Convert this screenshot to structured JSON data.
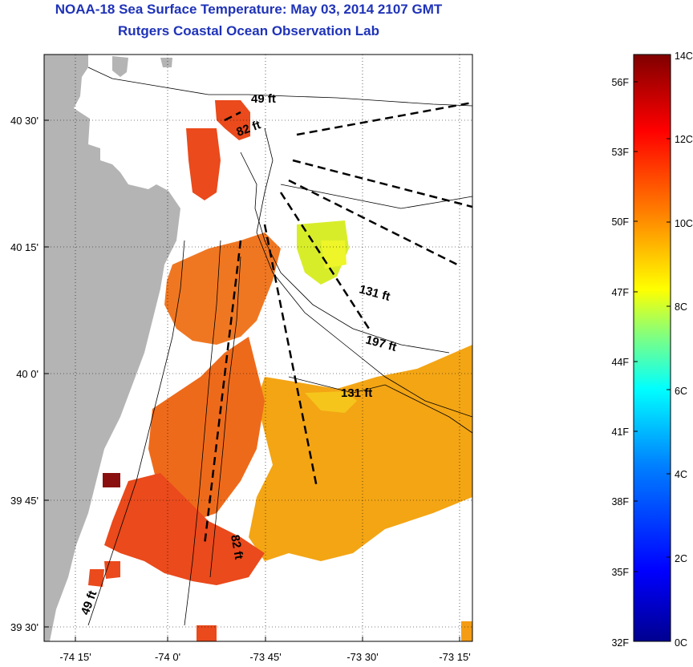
{
  "header": {
    "title": "NOAA-18 Sea Surface Temperature:  May 03, 2014 2107 GMT",
    "subtitle": "Rutgers Coastal Ocean Observation Lab"
  },
  "map": {
    "lat_ticks": [
      "40 30'",
      "40 15'",
      "40 0'",
      "39 45'",
      "39 30'"
    ],
    "lon_ticks": [
      "-74 15'",
      "-74 0'",
      "-73 45'",
      "-73 30'",
      "-73 15'"
    ],
    "contour_labels": [
      "49 ft",
      "82 ft",
      "131 ft",
      "197 ft",
      "131 ft",
      "82 ft",
      "49 ft"
    ],
    "colors": {
      "land": "#b4b4b4",
      "cloud": "#ffffff",
      "coast": "#000000"
    }
  },
  "colorbar": {
    "celsius_ticks": [
      "14C",
      "12C",
      "10C",
      "8C",
      "6C",
      "4C",
      "2C",
      "0C"
    ],
    "fahrenheit_ticks": [
      "56F",
      "53F",
      "50F",
      "47F",
      "44F",
      "41F",
      "38F",
      "35F",
      "32F"
    ],
    "colormap": [
      "#00008f",
      "#0000ff",
      "#0080ff",
      "#00ffff",
      "#80ff80",
      "#ffff00",
      "#ff8000",
      "#ff0000",
      "#800000"
    ]
  }
}
